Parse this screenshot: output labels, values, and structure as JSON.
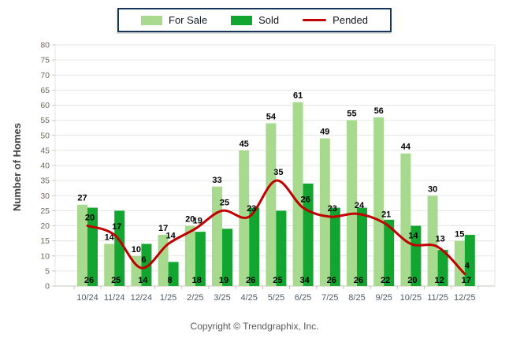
{
  "legend": {
    "items": [
      {
        "label": "For Sale",
        "swatch": "bar",
        "color": "#A7DA8E"
      },
      {
        "label": "Sold",
        "swatch": "bar",
        "color": "#12A52F"
      },
      {
        "label": "Pended",
        "swatch": "line",
        "color": "#C00000"
      }
    ]
  },
  "ylabel": "Number of Homes",
  "footer": "Copyright © Trendgraphix, Inc.",
  "colors": {
    "for_sale": "#A7DA8E",
    "sold": "#12A52F",
    "pended": "#C00000",
    "grid": "#E8E6E2",
    "axis": "#C9C5BE",
    "ytick_text": "#6E6857",
    "xtick_text": "#4E5B66",
    "value_label": "#000000"
  },
  "chart_data": {
    "type": "bar",
    "title": "",
    "categories": [
      "10/24",
      "11/24",
      "12/24",
      "1/25",
      "2/25",
      "3/25",
      "4/25",
      "5/25",
      "6/25",
      "7/25",
      "8/25",
      "9/25",
      "10/25",
      "11/25",
      "12/25"
    ],
    "series": [
      {
        "name": "For Sale",
        "type": "bar",
        "color": "#A7DA8E",
        "values": [
          27,
          14,
          10,
          17,
          20,
          33,
          45,
          54,
          61,
          49,
          55,
          56,
          44,
          30,
          15
        ]
      },
      {
        "name": "Sold",
        "type": "bar",
        "color": "#12A52F",
        "values": [
          26,
          25,
          14,
          8,
          18,
          19,
          26,
          25,
          34,
          26,
          26,
          22,
          20,
          12,
          17
        ]
      },
      {
        "name": "Pended",
        "type": "line",
        "color": "#C00000",
        "values": [
          20,
          17,
          6,
          14,
          19,
          25,
          23,
          35,
          26,
          23,
          24,
          21,
          14,
          13,
          4
        ]
      }
    ],
    "xlabel": "",
    "ylabel": "Number of Homes",
    "ylim": [
      0,
      80
    ],
    "ytick_step": 5,
    "grid": true,
    "legend_position": "top"
  }
}
